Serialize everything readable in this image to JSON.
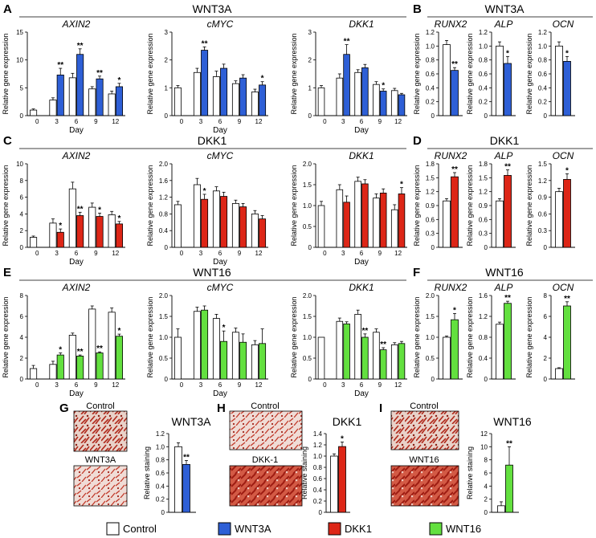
{
  "colors": {
    "control": "#ffffff",
    "wnt3a": "#2e5fd6",
    "dkk1": "#dd2617",
    "wnt16": "#63e03f",
    "stain_bg": "#e8cfc6",
    "stain": "#b3261c"
  },
  "text": {
    "row_titles": {
      "A": "WNT3A",
      "B": "WNT3A",
      "C": "DKK1",
      "D": "DKK1",
      "E": "WNT16",
      "F": "WNT16"
    },
    "panel_letters": [
      "A",
      "B",
      "C",
      "D",
      "E",
      "F",
      "G",
      "H",
      "I"
    ],
    "y_axis_label": "Relative gene expression",
    "x_axis_label": "Day",
    "staining_label": "Relative staining",
    "G": {
      "title": "WNT3A",
      "top_image": "Control",
      "bottom_image": "WNT3A"
    },
    "H": {
      "title": "DKK1",
      "top_image": "Control",
      "bottom_image": "DKK-1"
    },
    "I": {
      "title": "WNT16",
      "top_image": "Control",
      "bottom_image": "WNT16"
    }
  },
  "legend": [
    {
      "label": "Control",
      "color": "#ffffff"
    },
    {
      "label": "WNT3A",
      "color": "#2e5fd6"
    },
    {
      "label": "DKK1",
      "color": "#dd2617"
    },
    {
      "label": "WNT16",
      "color": "#63e03f"
    }
  ],
  "chart_data": [
    {
      "panel": "A",
      "type": "bar",
      "title": "AXIN2",
      "treatment": "WNT3A",
      "categories": [
        "0",
        "3",
        "6",
        "9",
        "12"
      ],
      "ylim": [
        0,
        15
      ],
      "yticks": [
        "0",
        "5",
        "10",
        "15"
      ],
      "series": [
        {
          "name": "Control",
          "values": [
            1.0,
            2.8,
            6.8,
            4.8,
            3.9
          ],
          "errors": [
            0.2,
            0.4,
            0.8,
            0.4,
            0.5
          ]
        },
        {
          "name": "WNT3A",
          "values": [
            null,
            7.3,
            11.0,
            6.6,
            5.2
          ],
          "errors": [
            null,
            1.2,
            1.0,
            0.5,
            0.6
          ]
        }
      ],
      "significance": [
        "",
        "**",
        "**",
        "**",
        "*"
      ]
    },
    {
      "panel": "A",
      "type": "bar",
      "title": "cMYC",
      "treatment": "WNT3A",
      "categories": [
        "0",
        "3",
        "6",
        "9",
        "12"
      ],
      "ylim": [
        0,
        3
      ],
      "yticks": [
        "0",
        "1",
        "2",
        "3"
      ],
      "series": [
        {
          "name": "Control",
          "values": [
            1.0,
            1.55,
            1.4,
            1.15,
            0.85
          ],
          "errors": [
            0.08,
            0.15,
            0.2,
            0.1,
            0.1
          ]
        },
        {
          "name": "WNT3A",
          "values": [
            null,
            2.35,
            1.7,
            1.35,
            1.1
          ],
          "errors": [
            null,
            0.12,
            0.15,
            0.12,
            0.12
          ]
        }
      ],
      "significance": [
        "",
        "**",
        "",
        "",
        "*"
      ]
    },
    {
      "panel": "A",
      "type": "bar",
      "title": "DKK1",
      "treatment": "WNT3A",
      "categories": [
        "0",
        "3",
        "6",
        "9",
        "12"
      ],
      "ylim": [
        0,
        3
      ],
      "yticks": [
        "0",
        "1",
        "2",
        "3"
      ],
      "series": [
        {
          "name": "Control",
          "values": [
            1.0,
            1.35,
            1.55,
            1.12,
            0.9
          ],
          "errors": [
            0.08,
            0.15,
            0.1,
            0.1,
            0.08
          ]
        },
        {
          "name": "WNT3A",
          "values": [
            null,
            2.2,
            1.72,
            0.88,
            0.75
          ],
          "errors": [
            null,
            0.35,
            0.12,
            0.08,
            0.05
          ]
        }
      ],
      "significance": [
        "",
        "**",
        "",
        "*",
        ""
      ]
    },
    {
      "panel": "B",
      "type": "bar",
      "title": "RUNX2",
      "treatment": "WNT3A",
      "categories": [
        ""
      ],
      "ylim": [
        0,
        1.2
      ],
      "yticks": [
        "0",
        "0.2",
        "0.4",
        "0.6",
        "0.8",
        "1.0",
        "1.2"
      ],
      "series": [
        {
          "name": "Control",
          "values": [
            1.02
          ],
          "errors": [
            0.06
          ]
        },
        {
          "name": "WNT3A",
          "values": [
            0.65
          ],
          "errors": [
            0.04
          ]
        }
      ],
      "significance": [
        "**"
      ]
    },
    {
      "panel": "B",
      "type": "bar",
      "title": "ALP",
      "treatment": "WNT3A",
      "categories": [
        ""
      ],
      "ylim": [
        0,
        1.2
      ],
      "yticks": [
        "0",
        "0.2",
        "0.4",
        "0.6",
        "0.8",
        "1.0",
        "1.2"
      ],
      "series": [
        {
          "name": "Control",
          "values": [
            1.0
          ],
          "errors": [
            0.06
          ]
        },
        {
          "name": "WNT3A",
          "values": [
            0.75
          ],
          "errors": [
            0.1
          ]
        }
      ],
      "significance": [
        "*"
      ]
    },
    {
      "panel": "B",
      "type": "bar",
      "title": "OCN",
      "treatment": "WNT3A",
      "categories": [
        ""
      ],
      "ylim": [
        0,
        1.2
      ],
      "yticks": [
        "0",
        "0.2",
        "0.4",
        "0.6",
        "0.8",
        "1.0",
        "1.2"
      ],
      "series": [
        {
          "name": "Control",
          "values": [
            1.0
          ],
          "errors": [
            0.06
          ]
        },
        {
          "name": "WNT3A",
          "values": [
            0.78
          ],
          "errors": [
            0.07
          ]
        }
      ],
      "significance": [
        "*"
      ]
    },
    {
      "panel": "C",
      "type": "bar",
      "title": "AXIN2",
      "treatment": "DKK1",
      "categories": [
        "0",
        "3",
        "6",
        "9",
        "12"
      ],
      "ylim": [
        0,
        10
      ],
      "yticks": [
        "0",
        "2",
        "4",
        "6",
        "8",
        "10"
      ],
      "series": [
        {
          "name": "Control",
          "values": [
            1.2,
            2.9,
            7.0,
            4.8,
            3.9
          ],
          "errors": [
            0.15,
            0.5,
            0.8,
            0.5,
            0.4
          ]
        },
        {
          "name": "DKK1",
          "values": [
            null,
            1.8,
            3.8,
            3.7,
            2.8
          ],
          "errors": [
            null,
            0.4,
            0.4,
            0.4,
            0.3
          ]
        }
      ],
      "significance": [
        "",
        "*",
        "**",
        "*",
        "*"
      ]
    },
    {
      "panel": "C",
      "type": "bar",
      "title": "cMYC",
      "treatment": "DKK1",
      "categories": [
        "0",
        "3",
        "6",
        "9",
        "12"
      ],
      "ylim": [
        0,
        2.0
      ],
      "yticks": [
        "0",
        "0.4",
        "0.8",
        "1.2",
        "1.6",
        "2.0"
      ],
      "series": [
        {
          "name": "Control",
          "values": [
            1.02,
            1.5,
            1.35,
            1.05,
            0.8
          ],
          "errors": [
            0.08,
            0.15,
            0.1,
            0.08,
            0.08
          ]
        },
        {
          "name": "DKK1",
          "values": [
            null,
            1.15,
            1.22,
            0.97,
            0.68
          ],
          "errors": [
            null,
            0.12,
            0.1,
            0.08,
            0.08
          ]
        }
      ],
      "significance": [
        "",
        "*",
        "",
        "",
        ""
      ]
    },
    {
      "panel": "C",
      "type": "bar",
      "title": "DKK1",
      "treatment": "DKK1",
      "categories": [
        "0",
        "3",
        "6",
        "9",
        "12"
      ],
      "ylim": [
        0,
        2.0
      ],
      "yticks": [
        "0",
        "0.5",
        "1.0",
        "1.5",
        "2.0"
      ],
      "series": [
        {
          "name": "Control",
          "values": [
            1.0,
            1.38,
            1.58,
            1.18,
            0.9
          ],
          "errors": [
            0.1,
            0.12,
            0.1,
            0.1,
            0.12
          ]
        },
        {
          "name": "DKK1",
          "values": [
            null,
            1.08,
            1.52,
            1.3,
            1.28
          ],
          "errors": [
            null,
            0.15,
            0.1,
            0.1,
            0.15
          ]
        }
      ],
      "significance": [
        "",
        "",
        "",
        "",
        "*"
      ]
    },
    {
      "panel": "D",
      "type": "bar",
      "title": "RUNX2",
      "treatment": "DKK1",
      "categories": [
        ""
      ],
      "ylim": [
        0,
        1.8
      ],
      "yticks": [
        "0",
        "0.3",
        "0.6",
        "0.9",
        "1.2",
        "1.5",
        "1.8"
      ],
      "series": [
        {
          "name": "Control",
          "values": [
            1.0
          ],
          "errors": [
            0.05
          ]
        },
        {
          "name": "DKK1",
          "values": [
            1.52
          ],
          "errors": [
            0.09
          ]
        }
      ],
      "significance": [
        "**"
      ]
    },
    {
      "panel": "D",
      "type": "bar",
      "title": "ALP",
      "treatment": "DKK1",
      "categories": [
        ""
      ],
      "ylim": [
        0,
        1.8
      ],
      "yticks": [
        "0",
        "0.3",
        "0.6",
        "0.9",
        "1.2",
        "1.5",
        "1.8"
      ],
      "series": [
        {
          "name": "Control",
          "values": [
            1.0
          ],
          "errors": [
            0.05
          ]
        },
        {
          "name": "DKK1",
          "values": [
            1.55
          ],
          "errors": [
            0.12
          ]
        }
      ],
      "significance": [
        "**"
      ]
    },
    {
      "panel": "D",
      "type": "bar",
      "title": "OCN",
      "treatment": "DKK1",
      "categories": [
        ""
      ],
      "ylim": [
        0,
        1.5
      ],
      "yticks": [
        "0",
        "0.3",
        "0.6",
        "0.9",
        "1.2",
        "1.5"
      ],
      "series": [
        {
          "name": "Control",
          "values": [
            1.0
          ],
          "errors": [
            0.06
          ]
        },
        {
          "name": "DKK1",
          "values": [
            1.22
          ],
          "errors": [
            0.1
          ]
        }
      ],
      "significance": [
        "*"
      ]
    },
    {
      "panel": "E",
      "type": "bar",
      "title": "AXIN2",
      "treatment": "WNT16",
      "categories": [
        "0",
        "3",
        "6",
        "9",
        "12"
      ],
      "ylim": [
        0,
        8
      ],
      "yticks": [
        "0",
        "2",
        "4",
        "6",
        "8"
      ],
      "series": [
        {
          "name": "Control",
          "values": [
            1.0,
            1.4,
            4.2,
            6.7,
            6.4
          ],
          "errors": [
            0.3,
            0.3,
            0.2,
            0.3,
            0.4
          ]
        },
        {
          "name": "WNT16",
          "values": [
            null,
            2.3,
            2.2,
            2.5,
            4.1
          ],
          "errors": [
            null,
            0.2,
            0.1,
            0.1,
            0.2
          ]
        }
      ],
      "significance": [
        "",
        "*",
        "**",
        "**",
        "*"
      ]
    },
    {
      "panel": "E",
      "type": "bar",
      "title": "cMYC",
      "treatment": "WNT16",
      "categories": [
        "0",
        "3",
        "6",
        "9",
        "12"
      ],
      "ylim": [
        0,
        2.0
      ],
      "yticks": [
        "0",
        "0.5",
        "1.0",
        "1.5",
        "2.0"
      ],
      "series": [
        {
          "name": "Control",
          "values": [
            1.0,
            1.62,
            1.45,
            1.12,
            0.82
          ],
          "errors": [
            0.2,
            0.1,
            0.1,
            0.1,
            0.1
          ]
        },
        {
          "name": "WNT16",
          "values": [
            null,
            1.65,
            0.9,
            0.88,
            0.85
          ],
          "errors": [
            null,
            0.1,
            0.25,
            0.2,
            0.35
          ]
        }
      ],
      "significance": [
        "",
        "",
        "*",
        "",
        ""
      ]
    },
    {
      "panel": "E",
      "type": "bar",
      "title": "DKK1",
      "treatment": "WNT16",
      "categories": [
        "0",
        "3",
        "6",
        "9",
        "12"
      ],
      "ylim": [
        0,
        2.0
      ],
      "yticks": [
        "0",
        "0.5",
        "1.0",
        "1.5",
        "2.0"
      ],
      "series": [
        {
          "name": "Control",
          "values": [
            1.0,
            1.38,
            1.55,
            1.12,
            0.82
          ],
          "errors": [
            0,
            0.08,
            0.1,
            0.08,
            0.05
          ]
        },
        {
          "name": "WNT16",
          "values": [
            null,
            1.32,
            1.0,
            0.7,
            0.85
          ],
          "errors": [
            null,
            0.05,
            0.08,
            0.05,
            0.05
          ]
        }
      ],
      "significance": [
        "",
        "",
        "**",
        "**",
        ""
      ]
    },
    {
      "panel": "F",
      "type": "bar",
      "title": "RUNX2",
      "treatment": "WNT16",
      "categories": [
        ""
      ],
      "ylim": [
        0,
        2.0
      ],
      "yticks": [
        "0",
        "0.5",
        "1.0",
        "1.5",
        "2.0"
      ],
      "series": [
        {
          "name": "Control",
          "values": [
            1.0
          ],
          "errors": [
            0.03
          ]
        },
        {
          "name": "WNT16",
          "values": [
            1.42
          ],
          "errors": [
            0.15
          ]
        }
      ],
      "significance": [
        "*"
      ]
    },
    {
      "panel": "F",
      "type": "bar",
      "title": "ALP",
      "treatment": "WNT16",
      "categories": [
        ""
      ],
      "ylim": [
        0,
        1.6
      ],
      "yticks": [
        "0",
        "0.4",
        "0.8",
        "1.2",
        "1.6"
      ],
      "series": [
        {
          "name": "Control",
          "values": [
            1.05
          ],
          "errors": [
            0.04
          ]
        },
        {
          "name": "WNT16",
          "values": [
            1.45
          ],
          "errors": [
            0.04
          ]
        }
      ],
      "significance": [
        "**"
      ]
    },
    {
      "panel": "F",
      "type": "bar",
      "title": "OCN",
      "treatment": "WNT16",
      "categories": [
        ""
      ],
      "ylim": [
        0,
        8
      ],
      "yticks": [
        "0",
        "2",
        "4",
        "6",
        "8"
      ],
      "series": [
        {
          "name": "Control",
          "values": [
            1.0
          ],
          "errors": [
            0.08
          ]
        },
        {
          "name": "WNT16",
          "values": [
            7.0
          ],
          "errors": [
            0.4
          ]
        }
      ],
      "significance": [
        "**"
      ]
    },
    {
      "panel": "G",
      "type": "bar",
      "title": "WNT3A",
      "treatment": "WNT3A",
      "categories": [
        ""
      ],
      "ylim": [
        0,
        1.2
      ],
      "yticks": [
        "0",
        "0.2",
        "0.4",
        "0.6",
        "0.8",
        "1.0",
        "1.2"
      ],
      "series": [
        {
          "name": "Control",
          "values": [
            1.0
          ],
          "errors": [
            0.06
          ]
        },
        {
          "name": "WNT3A",
          "values": [
            0.73
          ],
          "errors": [
            0.06
          ]
        }
      ],
      "significance": [
        "**"
      ]
    },
    {
      "panel": "H",
      "type": "bar",
      "title": "DKK1",
      "treatment": "DKK1",
      "categories": [
        ""
      ],
      "ylim": [
        0,
        1.4
      ],
      "yticks": [
        "0",
        "0.2",
        "0.4",
        "0.6",
        "0.8",
        "1.0",
        "1.2",
        "1.4"
      ],
      "series": [
        {
          "name": "Control",
          "values": [
            1.0
          ],
          "errors": [
            0.04
          ]
        },
        {
          "name": "DKK1",
          "values": [
            1.17
          ],
          "errors": [
            0.08
          ]
        }
      ],
      "significance": [
        "*"
      ]
    },
    {
      "panel": "I",
      "type": "bar",
      "title": "WNT16",
      "treatment": "WNT16",
      "categories": [
        ""
      ],
      "ylim": [
        0,
        12
      ],
      "yticks": [
        "0",
        "2",
        "4",
        "6",
        "8",
        "10",
        "12"
      ],
      "series": [
        {
          "name": "Control",
          "values": [
            1.0
          ],
          "errors": [
            0.6
          ]
        },
        {
          "name": "WNT16",
          "values": [
            7.2
          ],
          "errors": [
            2.8
          ]
        }
      ],
      "significance": [
        "**"
      ]
    }
  ]
}
